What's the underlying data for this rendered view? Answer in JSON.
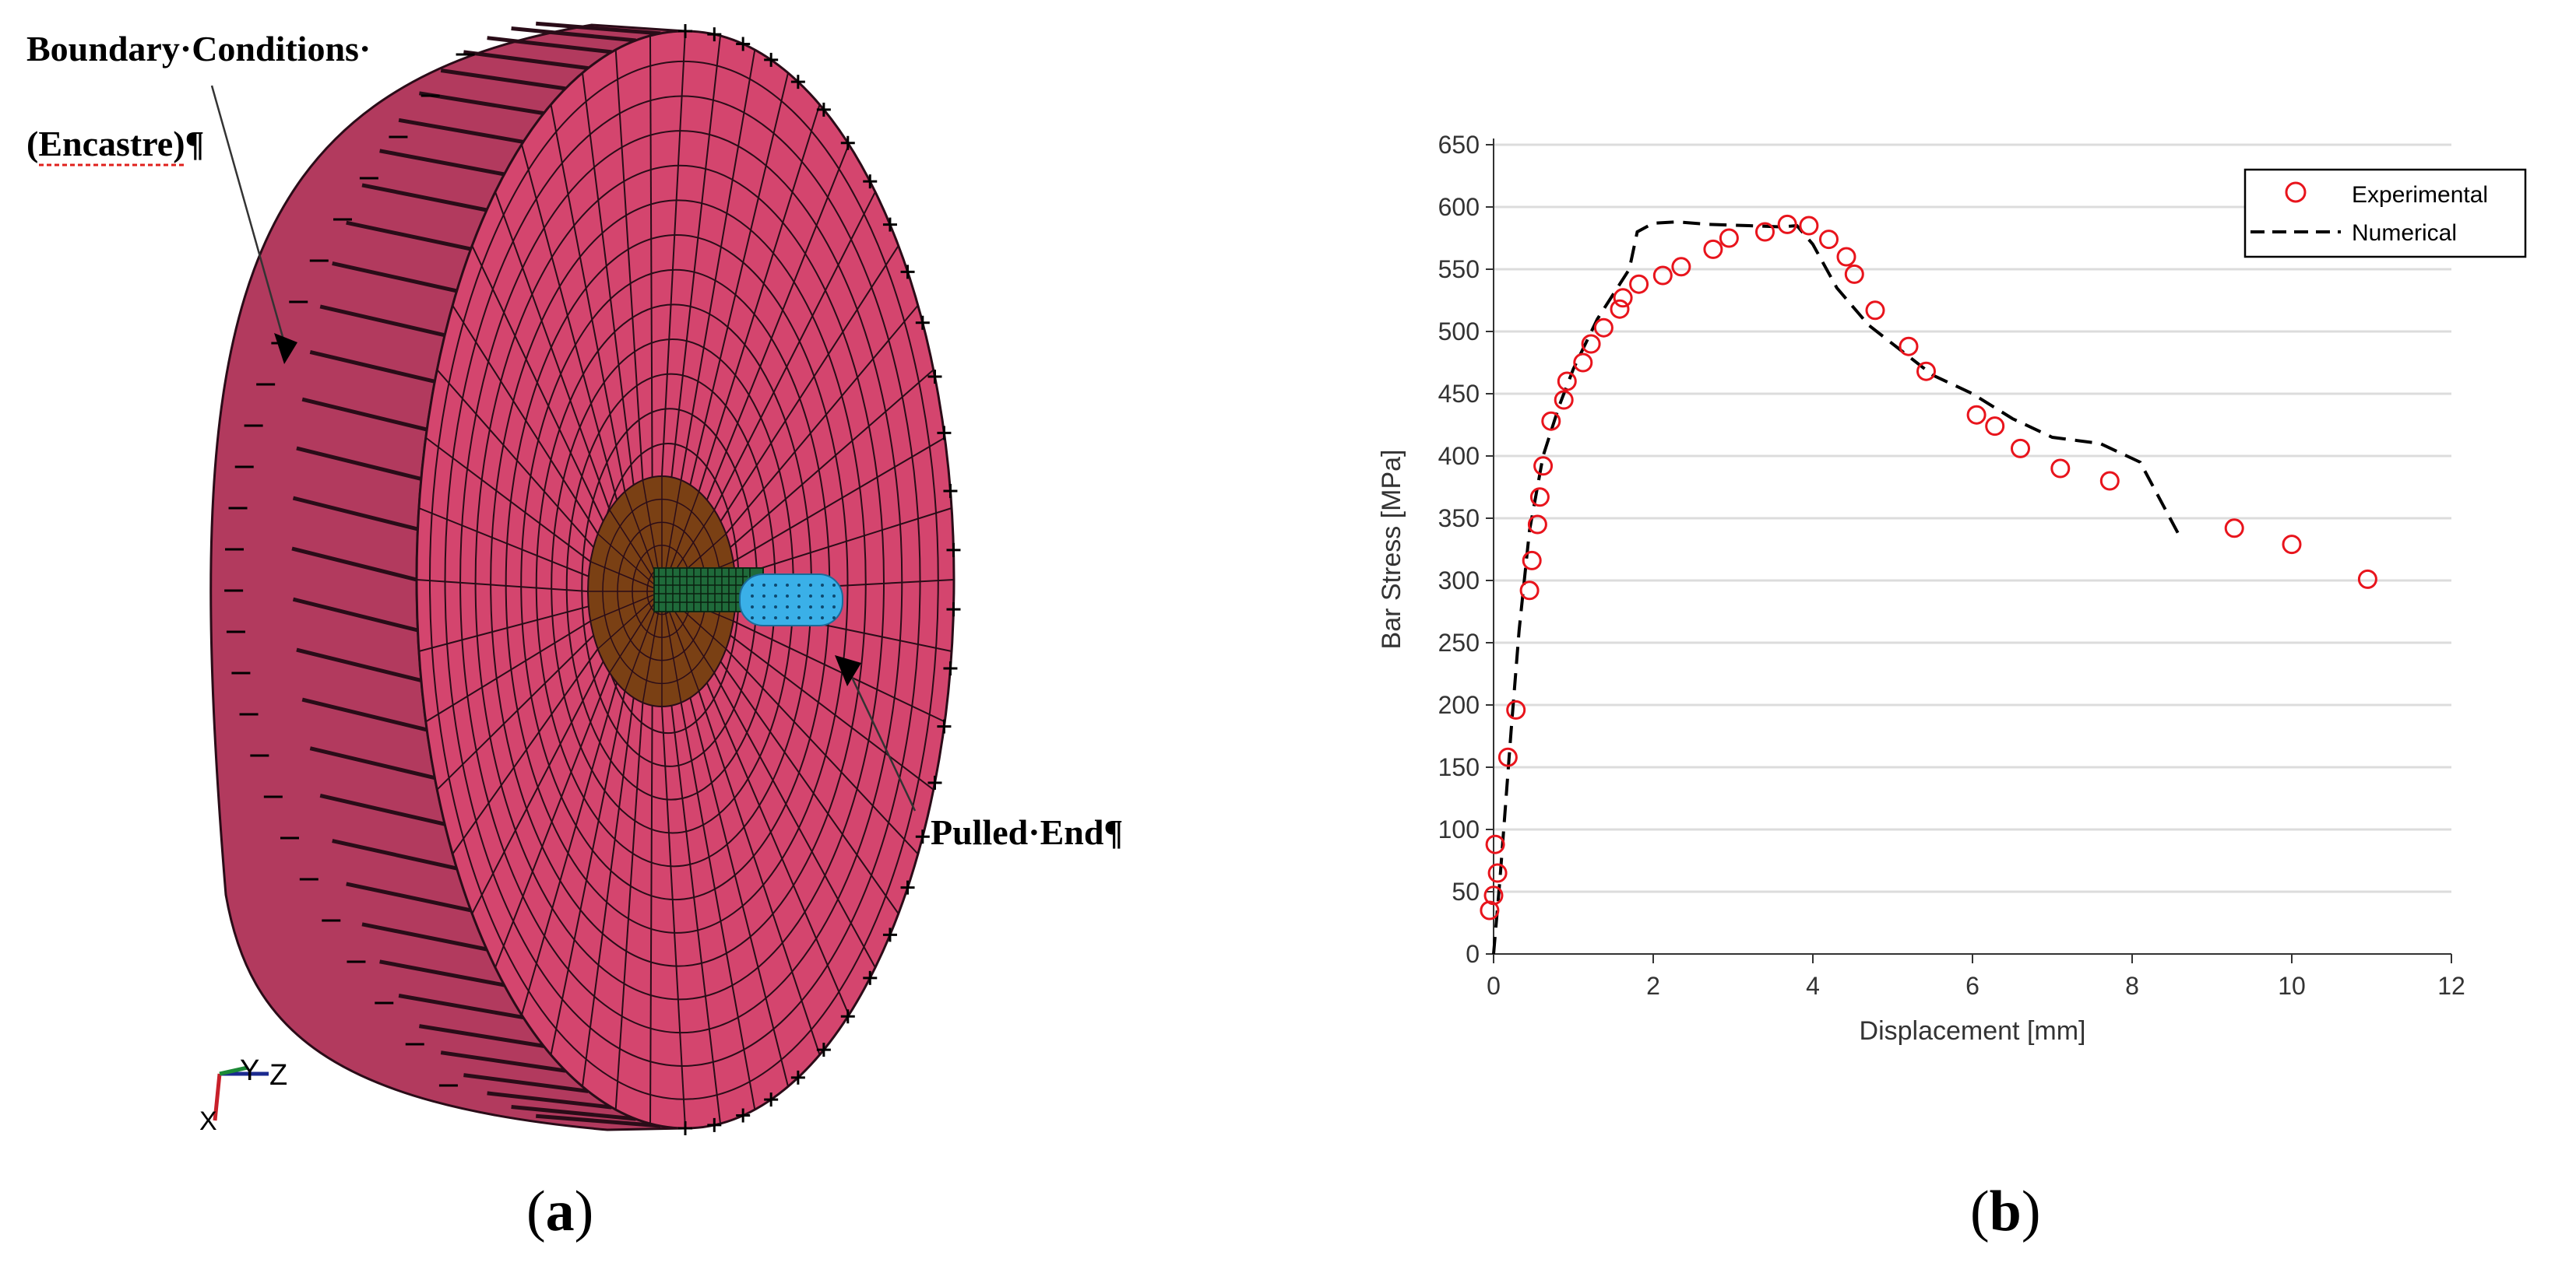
{
  "panel_a": {
    "label_boundary_line1": "Boundary·Conditions·",
    "label_boundary_line2": "(Encastre)¶",
    "label_pulled_end": "Pulled·End¶",
    "axis_triad": {
      "y": "Y",
      "z": "Z",
      "x": "X"
    },
    "colors": {
      "disk": "#d4456e",
      "rim": "#b23a5e",
      "insert": "#7a4014",
      "bar": "#1f6a3a",
      "pulled_end": "#3ab0e8",
      "mesh": "#2a0c18"
    },
    "caption_letter": "a"
  },
  "panel_b": {
    "caption_letter": "b"
  },
  "chart_data": {
    "type": "scatter",
    "title": "",
    "xlabel": "Displacement [mm]",
    "ylabel": "Bar Stress [MPa]",
    "xlim": [
      0,
      12
    ],
    "ylim": [
      0,
      650
    ],
    "x_ticks": [
      "0",
      "2",
      "4",
      "6",
      "8",
      "10",
      "12"
    ],
    "y_ticks": [
      "0",
      "50",
      "100",
      "150",
      "200",
      "250",
      "300",
      "350",
      "400",
      "450",
      "500",
      "550",
      "600",
      "650"
    ],
    "grid": "horizontal",
    "legend_position": "top-right",
    "series": [
      {
        "name": "Experimental",
        "style": "markers",
        "color": "#e8141c",
        "x": [
          -0.05,
          0.0,
          0.02,
          0.05,
          0.18,
          0.28,
          0.45,
          0.48,
          0.55,
          0.58,
          0.62,
          0.72,
          0.88,
          0.92,
          1.12,
          1.22,
          1.38,
          1.58,
          1.62,
          1.82,
          2.12,
          2.35,
          2.75,
          2.95,
          3.4,
          3.68,
          3.95,
          4.2,
          4.42,
          4.52,
          4.78,
          5.2,
          5.42,
          6.05,
          6.28,
          6.6,
          7.1,
          7.72,
          9.28,
          10.0,
          10.95
        ],
        "y": [
          35,
          47,
          88,
          65,
          158,
          196,
          292,
          316,
          345,
          367,
          392,
          428,
          445,
          460,
          475,
          490,
          503,
          518,
          527,
          538,
          545,
          552,
          566,
          575,
          580,
          586,
          585,
          574,
          560,
          546,
          517,
          488,
          468,
          433,
          424,
          406,
          390,
          380,
          342,
          329,
          301
        ]
      },
      {
        "name": "Numerical",
        "style": "dashed",
        "color": "#000000",
        "x": [
          0.0,
          0.08,
          0.22,
          0.32,
          0.45,
          0.62,
          0.82,
          1.0,
          1.3,
          1.7,
          1.8,
          2.0,
          2.3,
          2.7,
          3.2,
          3.6,
          3.8,
          4.0,
          4.3,
          4.7,
          5.1,
          5.5,
          6.0,
          6.5,
          7.0,
          7.6,
          8.1,
          8.6
        ],
        "y": [
          0,
          60,
          180,
          260,
          340,
          400,
          440,
          470,
          510,
          550,
          580,
          587,
          588,
          586,
          585,
          584,
          585,
          570,
          535,
          505,
          485,
          465,
          450,
          430,
          415,
          410,
          395,
          335
        ]
      }
    ]
  }
}
